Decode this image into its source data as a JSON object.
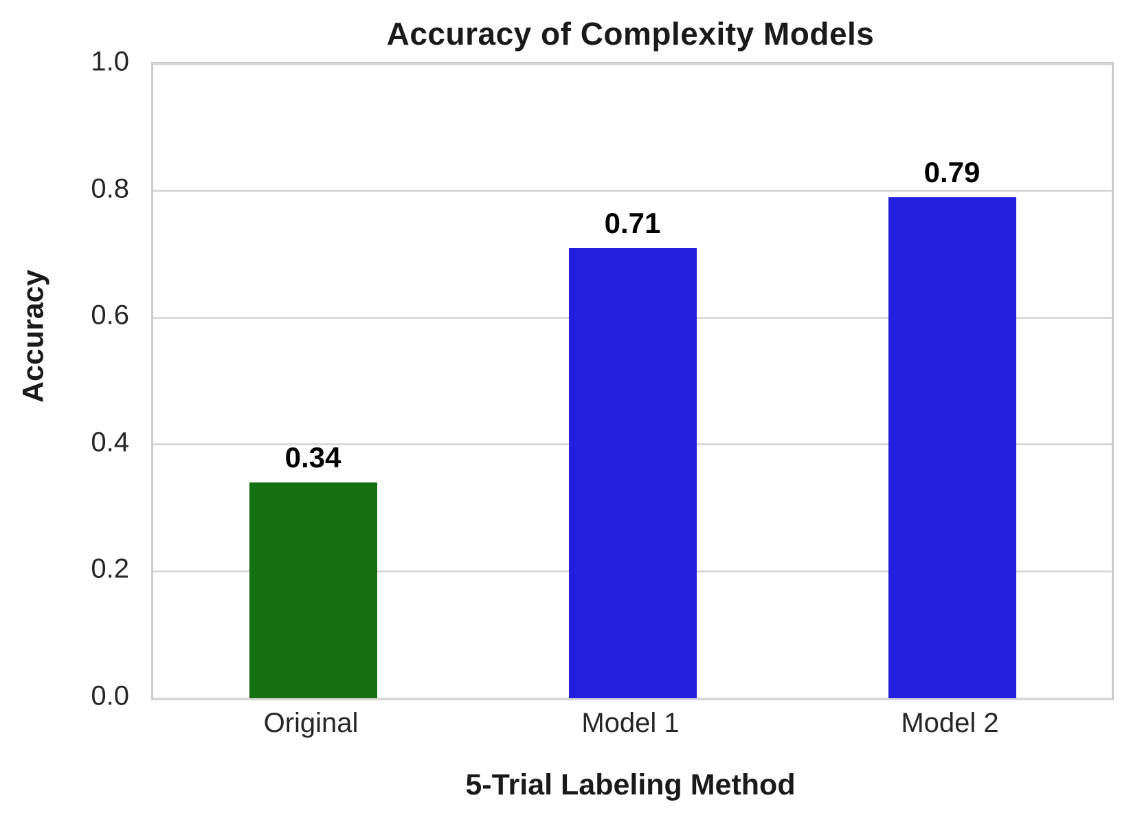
{
  "chart_data": {
    "type": "bar",
    "title": "Accuracy of Complexity Models",
    "xlabel": "5-Trial Labeling Method",
    "ylabel": "Accuracy",
    "categories": [
      "Original",
      "Model 1",
      "Model 2"
    ],
    "values": [
      0.34,
      0.71,
      0.79
    ],
    "bar_labels": [
      "0.34",
      "0.71",
      "0.79"
    ],
    "bar_colors": [
      "#147012",
      "#2320dd",
      "#2320dd"
    ],
    "ylim": [
      0.0,
      1.0
    ],
    "yticks": [
      0.0,
      0.2,
      0.4,
      0.6,
      0.8,
      1.0
    ],
    "ytick_labels": [
      "0.0",
      "0.2",
      "0.4",
      "0.6",
      "0.8",
      "1.0"
    ],
    "grid": "horizontal",
    "grid_color": "#d9d9d9",
    "spine_color": "#cccccc",
    "legend": "none",
    "bar_width_fraction": 0.4
  }
}
